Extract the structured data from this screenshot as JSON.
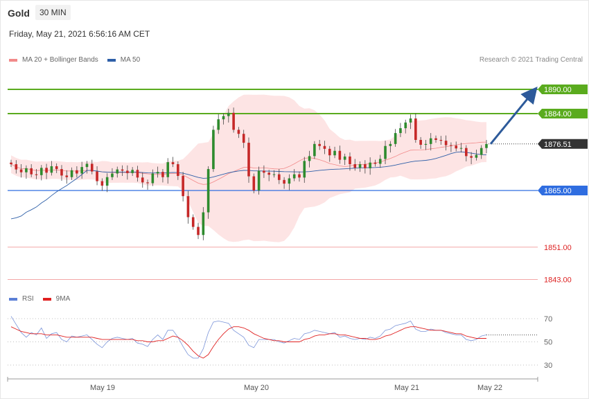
{
  "header": {
    "instrument": "Gold",
    "timeframe": "30 MIN",
    "datetime": "Friday, May 21, 2021 6:56:16 AM CET"
  },
  "legend": {
    "ma20": {
      "label": "MA 20 + Bollinger Bands",
      "color": "#f28a8a"
    },
    "ma50": {
      "label": "MA 50",
      "color": "#2e5fa8"
    },
    "credit": "Research © 2021 Trading Central"
  },
  "rsi_legend": {
    "rsi": {
      "label": "RSI",
      "color": "#5b7fd6"
    },
    "ma9": {
      "label": "9MA",
      "color": "#e02020"
    }
  },
  "colors": {
    "up": "#2e8b2e",
    "down": "#c62828",
    "band": "#fde1e1",
    "resistance": "#5aab1e",
    "support": "#2f6de0",
    "target": "#f4a6a6",
    "current": "#333333",
    "arrow": "#2d5a9a"
  },
  "chart_data": [
    {
      "type": "candlestick",
      "title": "Gold",
      "timeframe": "30 MIN",
      "x_tick_labels": [
        "May 19",
        "May 20",
        "May 21",
        "May 22"
      ],
      "ylim": [
        1838,
        1896
      ],
      "current_price": "1876.51",
      "levels": [
        {
          "value": "1890.00",
          "kind": "resistance",
          "style": "solid"
        },
        {
          "value": "1884.00",
          "kind": "resistance",
          "style": "solid"
        },
        {
          "value": "1876.51",
          "kind": "current",
          "style": "dotted"
        },
        {
          "value": "1865.00",
          "kind": "support",
          "style": "solid"
        },
        {
          "value": "1851.00",
          "kind": "target",
          "style": "solid"
        },
        {
          "value": "1843.00",
          "kind": "target",
          "style": "solid"
        }
      ],
      "series": [
        {
          "name": "MA 20 + Bollinger Bands",
          "kind": "band"
        },
        {
          "name": "MA 50",
          "kind": "line"
        }
      ],
      "close_path": [
        1871.5,
        1870.2,
        1869.5,
        1870.5,
        1869.0,
        1868.8,
        1870.6,
        1869.4,
        1871.0,
        1870.3,
        1868.7,
        1868.3,
        1870.0,
        1869.2,
        1870.8,
        1871.6,
        1869.7,
        1867.3,
        1866.2,
        1868.3,
        1869.2,
        1870.2,
        1869.9,
        1869.3,
        1870.1,
        1868.2,
        1867.0,
        1866.8,
        1869.2,
        1869.6,
        1868.3,
        1872.0,
        1871.5,
        1868.6,
        1863.6,
        1858.4,
        1856.0,
        1854.0,
        1859.6,
        1870.3,
        1880.0,
        1882.6,
        1883.4,
        1884.2,
        1880.0,
        1879.0,
        1876.8,
        1868.5,
        1865.0,
        1869.9,
        1869.4,
        1868.9,
        1869.0,
        1867.6,
        1866.7,
        1868.0,
        1869.0,
        1868.2,
        1872.3,
        1873.5,
        1876.5,
        1876.0,
        1875.3,
        1873.7,
        1874.8,
        1872.6,
        1873.4,
        1871.5,
        1870.6,
        1871.5,
        1870.5,
        1871.9,
        1871.6,
        1872.8,
        1876.0,
        1876.5,
        1879.2,
        1880.4,
        1881.8,
        1882.8,
        1877.5,
        1876.3,
        1876.5,
        1877.9,
        1877.5,
        1877.3,
        1876.2,
        1876.1,
        1875.4,
        1875.5,
        1873.5,
        1873.1,
        1873.8,
        1875.5,
        1876.5
      ],
      "ohlc_note": "close_path is the approximate close of each 30-min candle"
    },
    {
      "type": "line",
      "title": "RSI",
      "yticks": [
        "70",
        "50",
        "30"
      ],
      "series": [
        {
          "name": "RSI",
          "values": [
            72,
            65,
            58,
            54,
            58,
            56,
            62,
            53,
            57,
            58,
            52,
            50,
            55,
            54,
            55,
            56,
            52,
            48,
            45,
            50,
            53,
            54,
            53,
            52,
            53,
            49,
            48,
            46,
            52,
            56,
            52,
            60,
            60,
            54,
            46,
            39,
            36,
            36,
            44,
            58,
            67,
            68,
            67,
            66,
            60,
            57,
            54,
            47,
            45,
            52,
            52,
            52,
            52,
            50,
            49,
            51,
            53,
            52,
            57,
            58,
            60,
            59,
            58,
            57,
            58,
            54,
            55,
            53,
            52,
            53,
            52,
            54,
            53,
            55,
            60,
            61,
            64,
            65,
            66,
            68,
            61,
            59,
            59,
            61,
            60,
            60,
            58,
            57,
            56,
            56,
            52,
            51,
            52,
            55,
            56
          ]
        },
        {
          "name": "9MA",
          "values": [
            63,
            61,
            59,
            58,
            57,
            57,
            57,
            56,
            56,
            56,
            55,
            54,
            54,
            54,
            54,
            54,
            54,
            53,
            52,
            52,
            52,
            52,
            52,
            52,
            52,
            51,
            51,
            50,
            50,
            51,
            51,
            53,
            55,
            54,
            51,
            47,
            42,
            38,
            36,
            39,
            46,
            52,
            57,
            61,
            63,
            63,
            62,
            60,
            57,
            55,
            53,
            52,
            51,
            51,
            50,
            50,
            50,
            50,
            52,
            53,
            55,
            56,
            56,
            57,
            57,
            56,
            56,
            55,
            54,
            53,
            53,
            52,
            52,
            53,
            55,
            56,
            58,
            60,
            62,
            63,
            63,
            62,
            61,
            60,
            60,
            60,
            59,
            58,
            57,
            57,
            55,
            54,
            53,
            53,
            53
          ]
        }
      ]
    }
  ]
}
